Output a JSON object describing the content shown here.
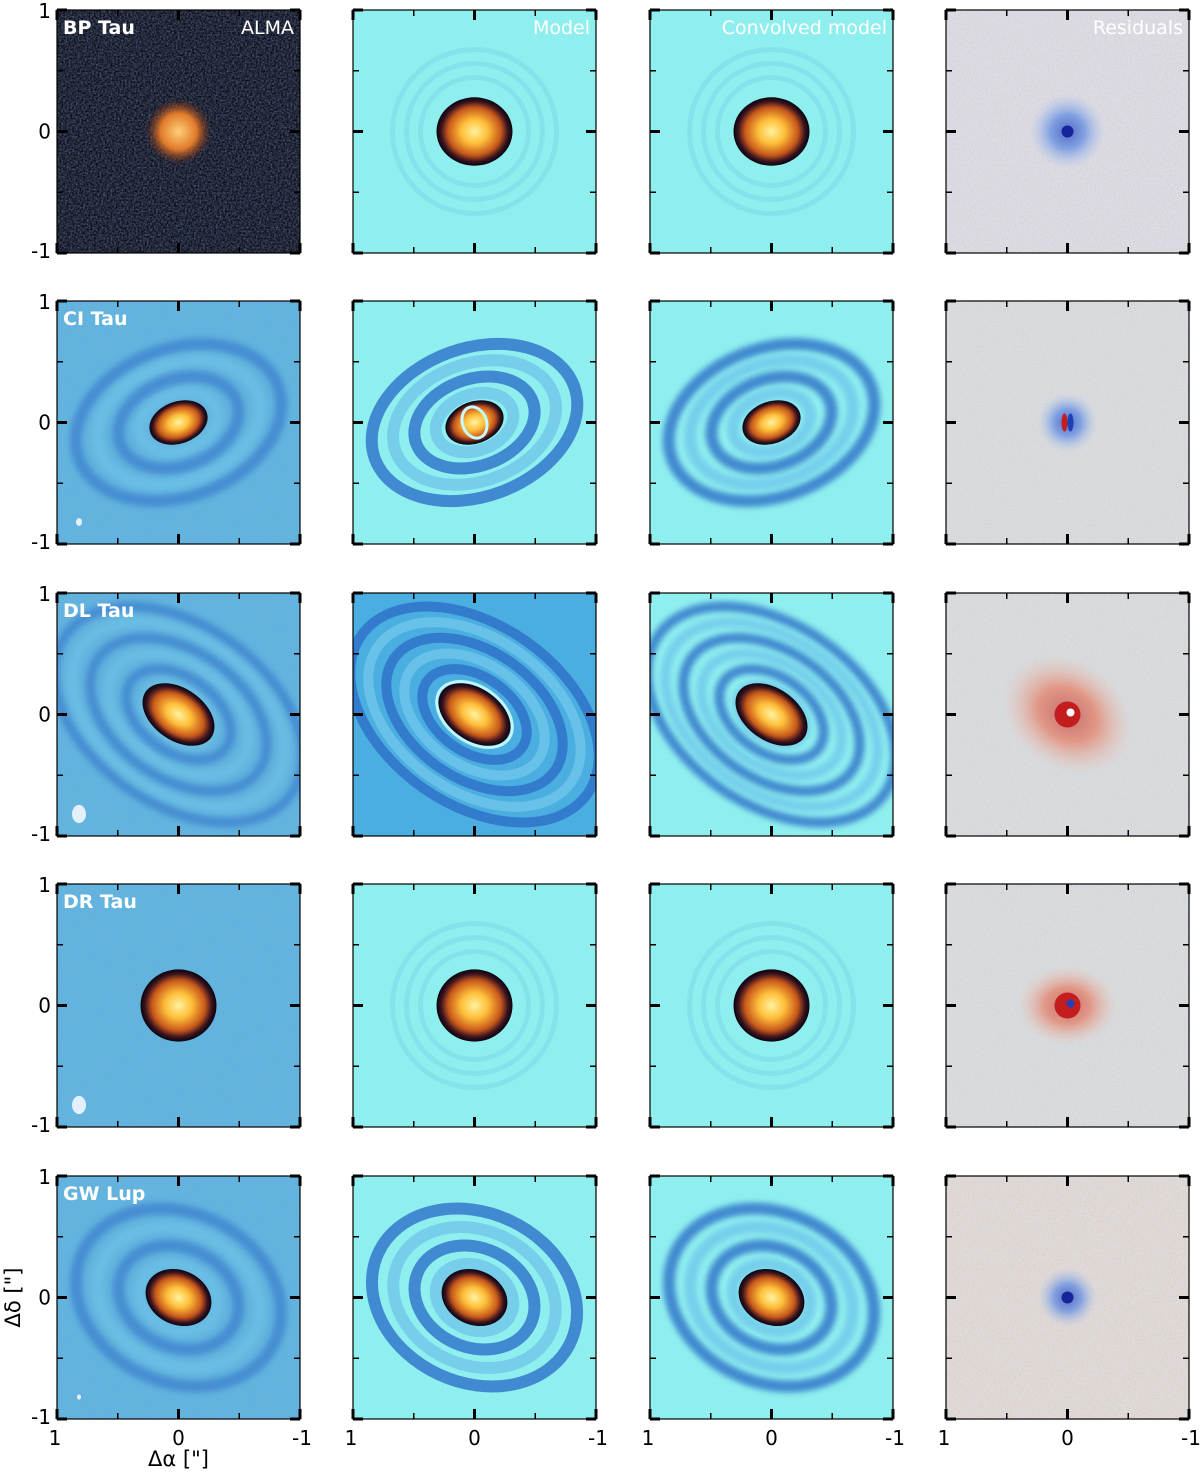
{
  "figure": {
    "columns": [
      {
        "key": "alma",
        "label": "ALMA"
      },
      {
        "key": "model",
        "label": "Model"
      },
      {
        "key": "convolved",
        "label": "Convolved model"
      },
      {
        "key": "residuals",
        "label": "Residuals"
      }
    ],
    "rows": [
      {
        "name": "BP Tau",
        "incl": 0.1,
        "pa": 0,
        "core": 0.3,
        "ring_style": "compact"
      },
      {
        "name": "CI Tau",
        "incl": 0.3,
        "pa": -20,
        "core": 0.1,
        "ring_style": "rings"
      },
      {
        "name": "DL Tau",
        "incl": 0.35,
        "pa": 35,
        "core": 0.35,
        "ring_style": "ellipses"
      },
      {
        "name": "DR Tau",
        "incl": 0.05,
        "pa": 0,
        "core": 0.3,
        "ring_style": "compact"
      },
      {
        "name": "GW Lup",
        "incl": 0.2,
        "pa": 25,
        "core": 0.2,
        "ring_style": "rings"
      }
    ],
    "x_axis": {
      "label": "Δα [\"]",
      "ticks": [
        "1",
        "0",
        "-1"
      ],
      "range": [
        1,
        -1
      ]
    },
    "y_axis": {
      "label": "Δδ [\"]",
      "ticks": [
        "1",
        "0",
        "-1"
      ],
      "range": [
        -1,
        1
      ]
    },
    "colors": {
      "model_background": "#8fefef",
      "alma_background": "#5fb3de",
      "residual_background": "#dcdcdc",
      "core_inner": "#ffd15a",
      "core_outer": "#c0570e",
      "dark_ring": "#0d0a18",
      "blue_ring": "#2d6fc8",
      "residual_red": "#e0503a",
      "residual_blue": "#3d6fe0"
    }
  }
}
